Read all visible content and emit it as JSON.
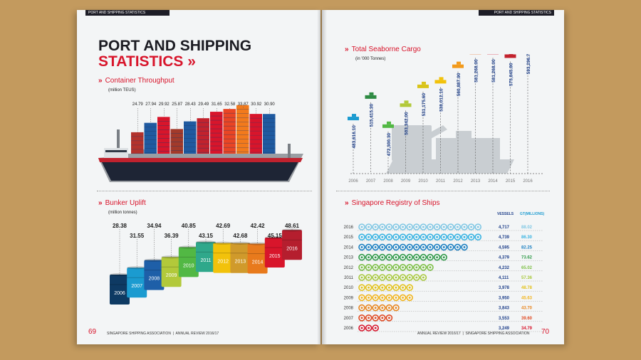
{
  "left": {
    "header_tag": "PORT AND SHIPPING STATISTICS",
    "title_line1": "PORT AND SHIPPING",
    "title_line2": "STATISTICS",
    "title_chevron": "»",
    "container": {
      "heading": "Container Throughput",
      "unit": "(million TEUS)"
    },
    "bunker": {
      "heading": "Bunker Uplift",
      "unit": "(million tonnes)"
    },
    "footer_org": "SINGAPORE SHIPPING ASSOCIATION",
    "footer_report": "ANNUAL REVIEW 2016/17",
    "page_number": "69"
  },
  "right": {
    "header_tag": "PORT AND SHIPPING STATISTICS",
    "cargo": {
      "heading": "Total Seaborne Cargo",
      "unit": "(in '000 Tonnes)"
    },
    "registry": {
      "heading": "Singapore Registry of Ships",
      "col_vessels": "VESSELS",
      "col_gt": "GT(MILLIONS)"
    },
    "footer_report": "ANNUAL REVIEW 2016/17",
    "footer_org": "SINGAPORE SHIPPING ASSOCIATION",
    "page_number": "70"
  },
  "chevron": "»",
  "chart_data": [
    {
      "type": "bar",
      "title": "Container Throughput",
      "unit": "(million TEUS)",
      "values": [
        24.79,
        27.94,
        29.92,
        25.87,
        28.43,
        29.49,
        31.65,
        32.58,
        33.87,
        30.92,
        30.9
      ],
      "labels": [
        "24.79",
        "27.94",
        "29.92",
        "25.87",
        "28.43",
        "29.49",
        "31.65",
        "32.58",
        "33.87",
        "30.92",
        "30.90"
      ],
      "colors": [
        "#b3322c",
        "#1f5aa0",
        "#d8152b",
        "#a33a2a",
        "#1f5aa0",
        "#c2222d",
        "#d8152b",
        "#ea4524",
        "#f27a1c",
        "#d8152b",
        "#1f5aa0"
      ]
    },
    {
      "type": "bar",
      "title": "Bunker Uplift",
      "unit": "(million tonnes)",
      "categories": [
        "2006",
        "2007",
        "2008",
        "2009",
        "2010",
        "2011",
        "2012",
        "2013",
        "2014",
        "2015",
        "2016"
      ],
      "values": [
        28.38,
        31.55,
        34.94,
        36.39,
        40.85,
        43.15,
        42.69,
        42.68,
        42.42,
        45.15,
        48.61
      ],
      "labels": [
        "28.38",
        "31.55",
        "34.94",
        "36.39",
        "40.85",
        "43.15",
        "42.69",
        "42.68",
        "42.42",
        "45.15",
        "48.61"
      ],
      "colors": [
        "#0e3a63",
        "#1b9bd0",
        "#1e5fa8",
        "#b2c93a",
        "#52b844",
        "#2fa88b",
        "#f2c20b",
        "#d09a2b",
        "#e87a1c",
        "#d8152b",
        "#b51e2e"
      ]
    },
    {
      "type": "bar",
      "title": "Total Seaborne Cargo",
      "unit": "(in '000 Tonnes)",
      "categories": [
        "2006",
        "2007",
        "2008",
        "2009",
        "2010",
        "2011",
        "2012",
        "2013",
        "2014",
        "2015",
        "2016"
      ],
      "values": [
        483616.1,
        515415.3,
        472300.3,
        503342.0,
        531175.6,
        538012.1,
        560887.9,
        581268.0,
        581268.0,
        575845.8,
        593296.7
      ],
      "labels": [
        "483,616.10",
        "515,415.30",
        "472,300.30",
        "503,342.00",
        "531,175.60",
        "538,012.10",
        "560,887.90",
        "581,268.00",
        "581,268.00",
        "575,845.80",
        "593,296.70"
      ],
      "colors": [
        "#1b9bd0",
        "#2d8a42",
        "#52b844",
        "#b2c93a",
        "#d9c41a",
        "#f2c20b",
        "#f29a1c",
        "#ea6b1c",
        "#d8152b",
        "#c2222d",
        "#1e3f8a"
      ]
    },
    {
      "type": "bar",
      "title": "Singapore Registry of Ships",
      "categories": [
        "2016",
        "2015",
        "2014",
        "2013",
        "2012",
        "2011",
        "2010",
        "2009",
        "2008",
        "2007",
        "2006"
      ],
      "series": [
        {
          "name": "VESSELS",
          "values": [
            4717,
            4739,
            4595,
            4379,
            4232,
            4111,
            3978,
            3950,
            3843,
            3553,
            3249
          ],
          "labels": [
            "4,717",
            "4,739",
            "4,595",
            "4,379",
            "4,232",
            "4,111",
            "3,978",
            "3,950",
            "3,843",
            "3,553",
            "3,249"
          ]
        },
        {
          "name": "GT(MILLIONS)",
          "values": [
            88.02,
            86.3,
            82.25,
            73.62,
            65.02,
            57.36,
            48.78,
            45.63,
            43.7,
            39.6,
            34.79
          ],
          "labels": [
            "88.02",
            "86.30",
            "82.25",
            "73.62",
            "65.02",
            "57.36",
            "48.78",
            "45.63",
            "43.70",
            "39.60",
            "34.79"
          ]
        }
      ],
      "wheel_counts": [
        18,
        18,
        16,
        13,
        11,
        10,
        8,
        8,
        6,
        5,
        3
      ],
      "colors": [
        "#7fc7e4",
        "#38b3e2",
        "#1b7fc1",
        "#2f9a48",
        "#7cbf44",
        "#a8c83b",
        "#e3c21b",
        "#f2b41c",
        "#e8861f",
        "#e04a23",
        "#d8152b"
      ]
    }
  ]
}
